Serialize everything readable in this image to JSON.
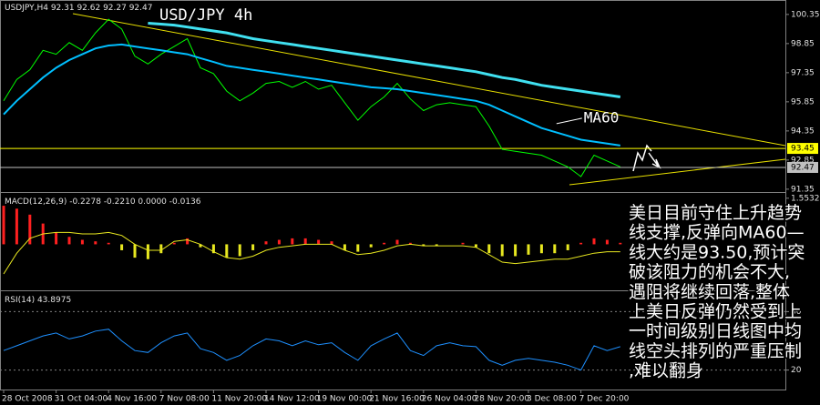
{
  "chart_data": [
    {
      "type": "line",
      "title": "USDJPY,H4  92.31 92.62 92.27 92.47",
      "subtitle": "USD/JPY 4h",
      "categories": [
        "28 Oct 2008",
        null,
        null,
        null,
        "31 Oct 04:00",
        null,
        null,
        null,
        "4 Nov 16:00",
        null,
        null,
        null,
        "7 Nov 08:00",
        null,
        null,
        null,
        "11 Nov 20:00",
        null,
        null,
        null,
        "14 Nov 12:00",
        null,
        null,
        null,
        "19 Nov 00:00",
        null,
        null,
        null,
        "21 Nov 16:00",
        null,
        null,
        null,
        "26 Nov 04:00",
        null,
        null,
        null,
        "28 Nov 20:00",
        null,
        null,
        null,
        "3 Dec 08:00",
        null,
        null,
        null,
        "7 Dec 20:00",
        null,
        null,
        null
      ],
      "series": [
        {
          "color": "#00ff00",
          "values": [
            95.9,
            97.0,
            97.5,
            98.5,
            98.3,
            98.9,
            98.5,
            99.4,
            100.1,
            99.6,
            98.2,
            97.8,
            98.3,
            98.7,
            99.1,
            97.6,
            97.3,
            96.4,
            95.9,
            96.3,
            96.8,
            96.9,
            96.6,
            96.9,
            96.5,
            96.7,
            95.8,
            94.9,
            95.6,
            96.1,
            96.8,
            96.0,
            95.4,
            95.7,
            95.8,
            95.7,
            95.6,
            94.6,
            93.4,
            93.3,
            93.2,
            93.1,
            92.8,
            92.5,
            92.0,
            93.1,
            92.8,
            92.5
          ]
        },
        {
          "color": "#40e0f0",
          "values": [
            null,
            null,
            null,
            null,
            null,
            null,
            null,
            null,
            null,
            null,
            null,
            99.9,
            99.85,
            99.8,
            99.7,
            99.6,
            99.5,
            99.4,
            99.25,
            99.1,
            99.0,
            98.9,
            98.8,
            98.7,
            98.6,
            98.5,
            98.4,
            98.3,
            98.2,
            98.1,
            98.0,
            97.9,
            97.8,
            97.7,
            97.6,
            97.5,
            97.4,
            97.25,
            97.1,
            97.0,
            96.85,
            96.7,
            96.6,
            96.5,
            96.4,
            96.3,
            96.2,
            96.1
          ]
        },
        {
          "name": "MA60",
          "color": "#00bfff",
          "values": [
            95.2,
            95.9,
            96.5,
            97.1,
            97.6,
            98.0,
            98.3,
            98.6,
            98.75,
            98.8,
            98.7,
            98.6,
            98.5,
            98.4,
            98.3,
            98.1,
            97.9,
            97.7,
            97.6,
            97.5,
            97.4,
            97.3,
            97.2,
            97.1,
            97.0,
            96.9,
            96.8,
            96.7,
            96.6,
            96.55,
            96.5,
            96.4,
            96.3,
            96.2,
            96.1,
            96.0,
            95.9,
            95.7,
            95.4,
            95.1,
            94.8,
            94.5,
            94.3,
            94.1,
            93.9,
            93.8,
            93.7,
            93.6
          ]
        }
      ],
      "hlines": [
        {
          "value": 93.45,
          "color": "#ffff00"
        },
        {
          "value": 92.47,
          "color": "#c0c0c0"
        }
      ],
      "ylim": [
        91.25,
        101.0
      ],
      "yticks": [
        91.35,
        92.85,
        94.35,
        95.85,
        97.35,
        98.85,
        100.35
      ]
    },
    {
      "type": "macd",
      "title": "MACD(12,26,9) -0.2278 -0.2210 0.0000 -0.0136",
      "values": [
        1.3,
        1.2,
        1.0,
        0.7,
        0.4,
        0.25,
        0.15,
        0.1,
        0.05,
        -0.2,
        -0.45,
        -0.5,
        -0.3,
        0.05,
        0.2,
        -0.1,
        -0.3,
        -0.45,
        -0.4,
        -0.2,
        0.1,
        0.15,
        0.2,
        0.2,
        0.15,
        0.1,
        -0.2,
        -0.25,
        -0.1,
        0.05,
        0.15,
        0.05,
        -0.05,
        -0.05,
        0.0,
        0.05,
        -0.1,
        -0.3,
        -0.4,
        -0.4,
        -0.35,
        -0.3,
        -0.3,
        -0.2,
        0.05,
        0.2,
        0.15,
        0.05
      ],
      "color_up": "#ff2020",
      "color_down": "#e8e820",
      "series": [
        {
          "color": "#e8e820",
          "values": [
            -1.0,
            -0.3,
            0.2,
            0.35,
            0.4,
            0.4,
            0.35,
            0.35,
            0.4,
            0.3,
            0.0,
            -0.2,
            -0.2,
            0.1,
            0.15,
            0.0,
            -0.25,
            -0.45,
            -0.5,
            -0.4,
            -0.2,
            -0.1,
            -0.05,
            0.0,
            0.0,
            0.0,
            -0.2,
            -0.35,
            -0.3,
            -0.2,
            -0.05,
            0.0,
            -0.05,
            -0.05,
            -0.05,
            -0.05,
            -0.1,
            -0.35,
            -0.6,
            -0.65,
            -0.6,
            -0.55,
            -0.5,
            -0.5,
            -0.4,
            -0.3,
            -0.25,
            -0.25
          ]
        }
      ],
      "ylim": [
        -1.52,
        1.7
      ],
      "yticks": [
        1.5532
      ]
    },
    {
      "type": "line",
      "title": "RSI(14) 43.8975",
      "series": [
        {
          "color": "#1e90ff",
          "values": [
            40,
            45,
            50,
            55,
            58,
            52,
            55,
            60,
            62,
            50,
            40,
            38,
            48,
            55,
            58,
            42,
            38,
            30,
            35,
            45,
            52,
            50,
            45,
            50,
            46,
            48,
            38,
            30,
            45,
            52,
            58,
            40,
            35,
            45,
            48,
            45,
            44,
            30,
            25,
            30,
            32,
            30,
            28,
            25,
            20,
            45,
            40,
            44
          ]
        }
      ],
      "ylim": [
        0,
        100
      ],
      "yticks": [
        20,
        80
      ],
      "grid_style": "dotted"
    }
  ],
  "annotation_lines": [
    "美日目前守住上升趋势",
    "线支撑,反弹向MA60—",
    "线大约是93.50,预计突",
    "破该阻力的机会不大,",
    "遇阻将继续回落,整体",
    "上美日反弹仍然受到上",
    "一时间级别日线图中均",
    "线空头排列的严重压制",
    ",难以翻身"
  ]
}
